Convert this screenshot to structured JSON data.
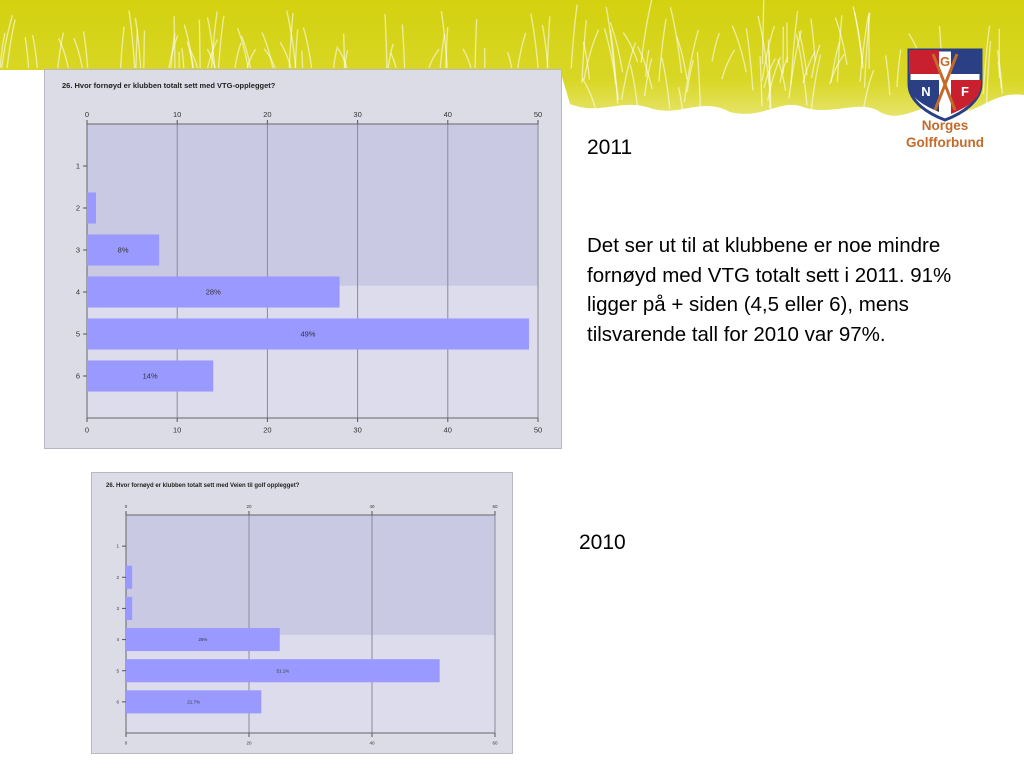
{
  "slide": {
    "logo": {
      "line1": "Norges",
      "line2": "Golfforbund",
      "letters": [
        "G",
        "N",
        "F"
      ]
    },
    "year_2011": "2011",
    "year_2010": "2010",
    "comment": "Det ser ut til at klubbene er noe mindre fornøyd med VTG totalt sett i 2011. 91% ligger på + siden (4,5 eller 6), mens tilsvarende tall for 2010 var 97%.",
    "colors": {
      "bar": "#9999ff",
      "plot_bg": "#c9c9e4",
      "frame_bg": "#dcdce6",
      "banner": "#d6d418"
    }
  },
  "chart_data": [
    {
      "type": "bar",
      "orientation": "horizontal",
      "title": "26. Hvor fornøyd er klubben totalt sett med VTG-opplegget?",
      "categories": [
        "1",
        "2",
        "3",
        "4",
        "5",
        "6"
      ],
      "values": [
        0,
        1,
        8,
        28,
        49,
        14
      ],
      "data_labels": [
        "",
        "",
        "8%",
        "28%",
        "49%",
        "14%"
      ],
      "xlim": [
        0,
        50
      ],
      "xticks": [
        0,
        10,
        20,
        30,
        40,
        50
      ],
      "grid": true
    },
    {
      "type": "bar",
      "orientation": "horizontal",
      "title": "26. Hvor fornøyd er klubben totalt sett med Veien til golf opplegget?",
      "categories": [
        "1",
        "2",
        "3",
        "4",
        "5",
        "6"
      ],
      "values": [
        0,
        1,
        1,
        25,
        51,
        22
      ],
      "data_labels": [
        "",
        "",
        "",
        "25%",
        "51.1%",
        "21.7%"
      ],
      "xlim": [
        0,
        60
      ],
      "xticks": [
        0,
        20,
        40,
        60
      ],
      "grid": true
    }
  ]
}
